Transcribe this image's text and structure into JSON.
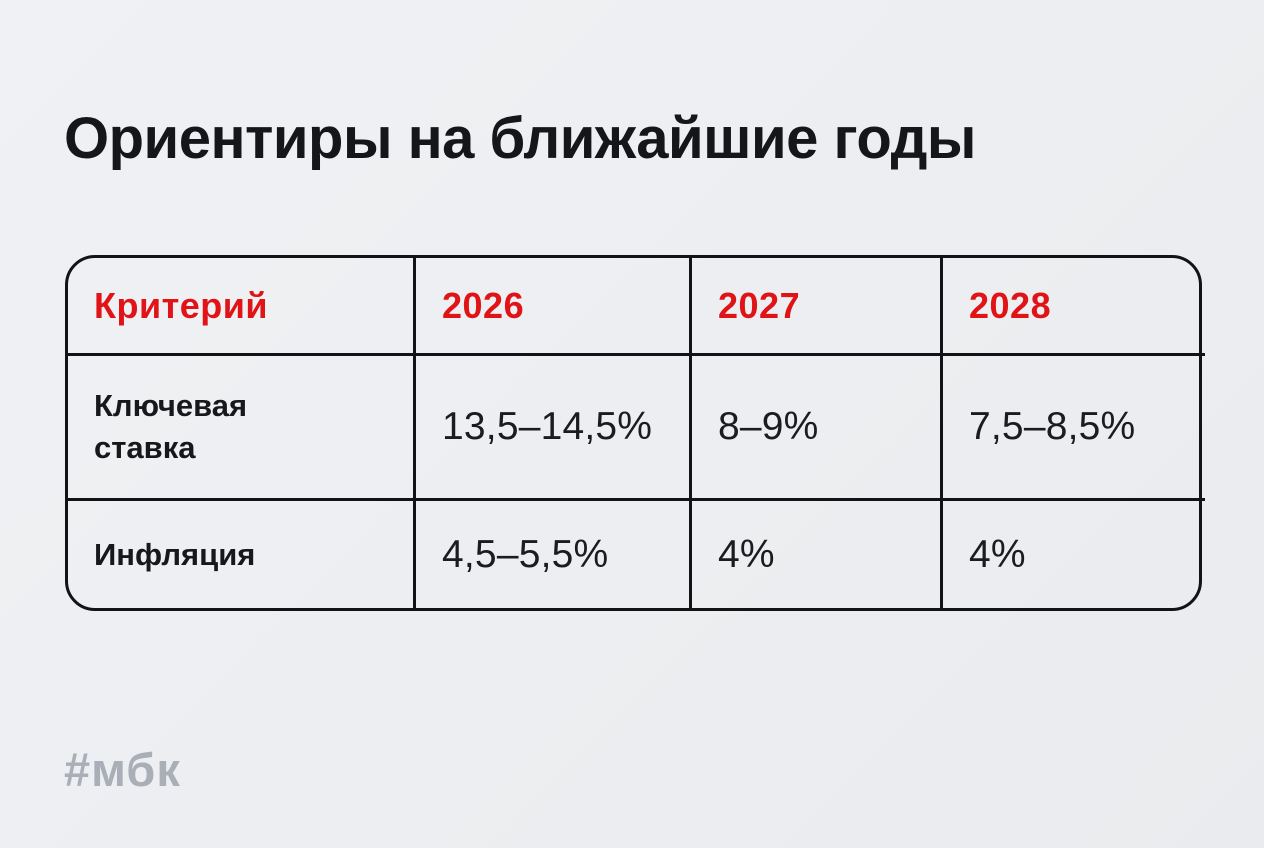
{
  "page": {
    "title": "Ориентиры на ближайшие годы",
    "watermark": "#мбк"
  },
  "colors": {
    "background": "#edeff2",
    "accent_red": "#e01317",
    "text_black": "#17181c",
    "table_border": "#121317",
    "watermark_gray": "#a9aeb7"
  },
  "chart_data": {
    "type": "table",
    "title": "Ориентиры на ближайшие годы",
    "columns": [
      "Критерий",
      "2026",
      "2027",
      "2028"
    ],
    "rows": [
      {
        "label": "Ключевая ставка",
        "values": [
          "13,5–14,5%",
          "8–9%",
          "7,5–8,5%"
        ]
      },
      {
        "label": "Инфляция",
        "values": [
          "4,5–5,5%",
          "4%",
          "4%"
        ]
      }
    ],
    "layout": {
      "header_text_color": "#e01317",
      "body_text_color": "#17181c",
      "grid": "full-borders",
      "corner_radius_px": 30
    }
  }
}
